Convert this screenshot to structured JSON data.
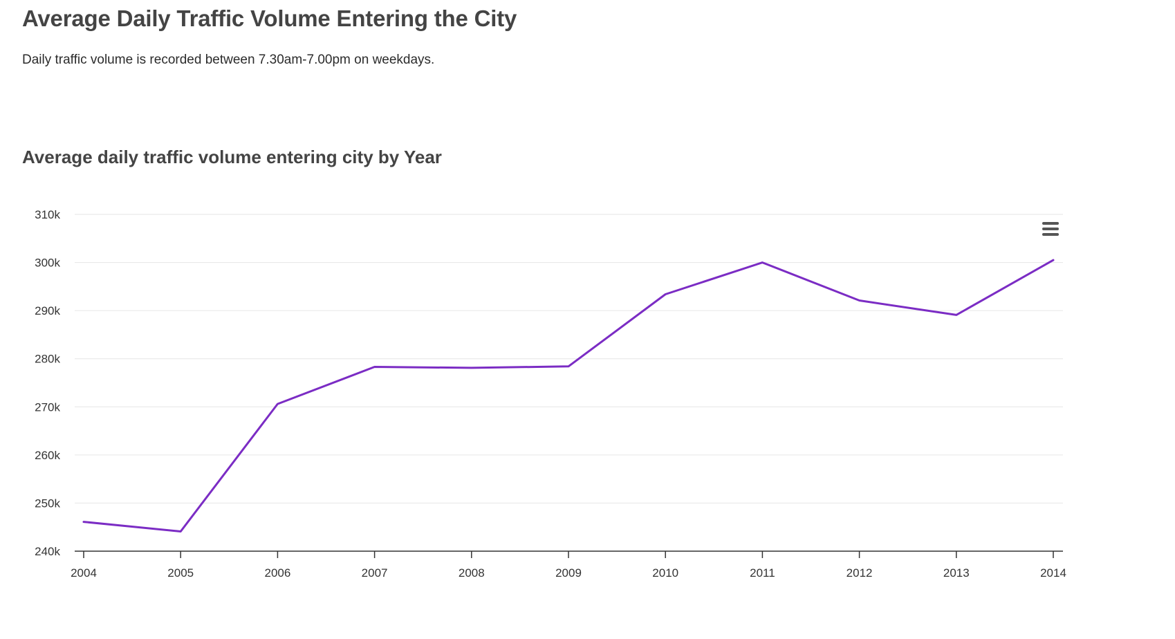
{
  "page": {
    "title": "Average Daily Traffic Volume Entering the City",
    "description": "Daily traffic volume is recorded between 7.30am-7.00pm on weekdays."
  },
  "chart": {
    "menu_icon": "hamburger-menu-icon"
  },
  "colors": {
    "series_line": "#7b2cc4",
    "grid": "#e6e6e6",
    "axis": "#333333"
  },
  "chart_data": {
    "type": "line",
    "title": "Average daily traffic volume entering city by Year",
    "xlabel": "",
    "ylabel": "",
    "x": [
      2004,
      2005,
      2006,
      2007,
      2008,
      2009,
      2010,
      2011,
      2012,
      2013,
      2014
    ],
    "series": [
      {
        "values": [
          246100,
          244100,
          270600,
          278300,
          278100,
          278400,
          293400,
          300000,
          292100,
          289100,
          300500
        ]
      }
    ],
    "ylim": [
      240000,
      310000
    ],
    "yticks": [
      240000,
      250000,
      260000,
      270000,
      280000,
      290000,
      300000,
      310000
    ],
    "ytick_labels": [
      "240k",
      "250k",
      "260k",
      "270k",
      "280k",
      "290k",
      "300k",
      "310k"
    ],
    "xtick_labels": [
      "2004",
      "2005",
      "2006",
      "2007",
      "2008",
      "2009",
      "2010",
      "2011",
      "2012",
      "2013",
      "2014"
    ],
    "grid": true,
    "legend": "none"
  }
}
